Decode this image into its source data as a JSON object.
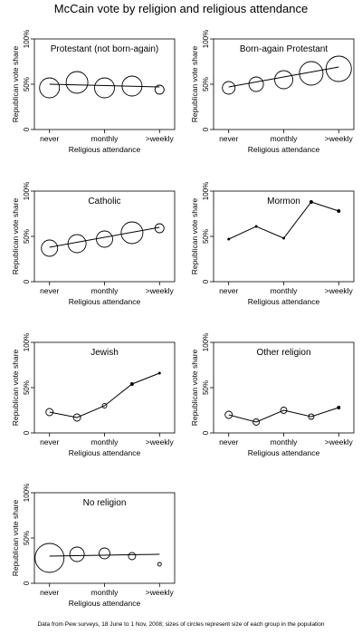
{
  "title": "McCain vote by religion and religious attendance",
  "footnote": "Data from Pew surveys, 18 June to 1 Nov, 2008; sizes of circles represent size of each group in the population",
  "chart_data": [
    {
      "type": "scatter",
      "title": "Protestant (not born-again)",
      "xlabel": "Religious attendance",
      "ylabel": "Republican vote share",
      "x_tick_labels": [
        "never",
        "monthly",
        ">weekly"
      ],
      "y_tick_labels": [
        "0",
        "50%",
        "100%"
      ],
      "ylim": [
        0,
        1
      ],
      "points": [
        {
          "x": 1,
          "y": 0.46,
          "size": 11
        },
        {
          "x": 2,
          "y": 0.52,
          "size": 12
        },
        {
          "x": 3,
          "y": 0.46,
          "size": 11
        },
        {
          "x": 4,
          "y": 0.48,
          "size": 11
        },
        {
          "x": 5,
          "y": 0.44,
          "size": 5
        }
      ],
      "fit": [
        0.5,
        0.47
      ]
    },
    {
      "type": "scatter",
      "title": "Born-again Protestant",
      "xlabel": "Religious attendance",
      "ylabel": "Republican vote share",
      "x_tick_labels": [
        "never",
        "monthly",
        ">weekly"
      ],
      "y_tick_labels": [
        "0",
        "50%",
        "100%"
      ],
      "ylim": [
        0,
        1
      ],
      "points": [
        {
          "x": 1,
          "y": 0.46,
          "size": 7
        },
        {
          "x": 2,
          "y": 0.5,
          "size": 8
        },
        {
          "x": 3,
          "y": 0.55,
          "size": 10
        },
        {
          "x": 4,
          "y": 0.62,
          "size": 13
        },
        {
          "x": 5,
          "y": 0.67,
          "size": 14
        }
      ],
      "fit": [
        0.47,
        0.69
      ]
    },
    {
      "type": "scatter",
      "title": "Catholic",
      "xlabel": "Religious attendance",
      "ylabel": "Republican vote share",
      "x_tick_labels": [
        "never",
        "monthly",
        ">weekly"
      ],
      "y_tick_labels": [
        "0",
        "50%",
        "100%"
      ],
      "ylim": [
        0,
        1
      ],
      "points": [
        {
          "x": 1,
          "y": 0.37,
          "size": 9
        },
        {
          "x": 2,
          "y": 0.42,
          "size": 10
        },
        {
          "x": 3,
          "y": 0.47,
          "size": 9
        },
        {
          "x": 4,
          "y": 0.54,
          "size": 12
        },
        {
          "x": 5,
          "y": 0.59,
          "size": 5
        }
      ],
      "fit": [
        0.38,
        0.6
      ]
    },
    {
      "type": "line",
      "title": "Mormon",
      "xlabel": "Religious attendance",
      "ylabel": "Republican vote share",
      "x_tick_labels": [
        "never",
        "monthly",
        ">weekly"
      ],
      "y_tick_labels": [
        "0",
        "50%",
        "100%"
      ],
      "ylim": [
        0,
        1
      ],
      "points": [
        {
          "x": 1,
          "y": 0.47,
          "size": 1
        },
        {
          "x": 2,
          "y": 0.61,
          "size": 1
        },
        {
          "x": 3,
          "y": 0.48,
          "size": 1
        },
        {
          "x": 4,
          "y": 0.88,
          "size": 1.5
        },
        {
          "x": 5,
          "y": 0.78,
          "size": 1.5
        }
      ],
      "fit": null
    },
    {
      "type": "line",
      "title": "Jewish",
      "xlabel": "Religious attendance",
      "ylabel": "Republican vote share",
      "x_tick_labels": [
        "never",
        "monthly",
        ">weekly"
      ],
      "y_tick_labels": [
        "0",
        "50%",
        "100%"
      ],
      "ylim": [
        0,
        1
      ],
      "points": [
        {
          "x": 1,
          "y": 0.23,
          "size": 4
        },
        {
          "x": 2,
          "y": 0.17,
          "size": 4
        },
        {
          "x": 3,
          "y": 0.3,
          "size": 2.5
        },
        {
          "x": 4,
          "y": 0.54,
          "size": 1.5
        },
        {
          "x": 5,
          "y": 0.66,
          "size": 1
        }
      ],
      "fit": null
    },
    {
      "type": "line",
      "title": "Other religion",
      "xlabel": "Religious attendance",
      "ylabel": "Republican vote share",
      "x_tick_labels": [
        "never",
        "monthly",
        ">weekly"
      ],
      "y_tick_labels": [
        "0",
        "50%",
        "100%"
      ],
      "ylim": [
        0,
        1
      ],
      "points": [
        {
          "x": 1,
          "y": 0.2,
          "size": 4
        },
        {
          "x": 2,
          "y": 0.12,
          "size": 3.5
        },
        {
          "x": 3,
          "y": 0.25,
          "size": 3.5
        },
        {
          "x": 4,
          "y": 0.18,
          "size": 3
        },
        {
          "x": 5,
          "y": 0.28,
          "size": 1.5
        }
      ],
      "fit": null
    },
    {
      "type": "scatter",
      "title": "No religion",
      "xlabel": "Religious attendance",
      "ylabel": "Republican vote share",
      "x_tick_labels": [
        "never",
        "monthly",
        ">weekly"
      ],
      "y_tick_labels": [
        "0",
        "50%",
        "100%"
      ],
      "ylim": [
        0,
        1
      ],
      "points": [
        {
          "x": 1,
          "y": 0.28,
          "size": 16
        },
        {
          "x": 2,
          "y": 0.32,
          "size": 8
        },
        {
          "x": 3,
          "y": 0.33,
          "size": 6
        },
        {
          "x": 4,
          "y": 0.3,
          "size": 4
        },
        {
          "x": 5,
          "y": 0.21,
          "size": 2
        }
      ],
      "fit": [
        0.3,
        0.32
      ]
    }
  ]
}
